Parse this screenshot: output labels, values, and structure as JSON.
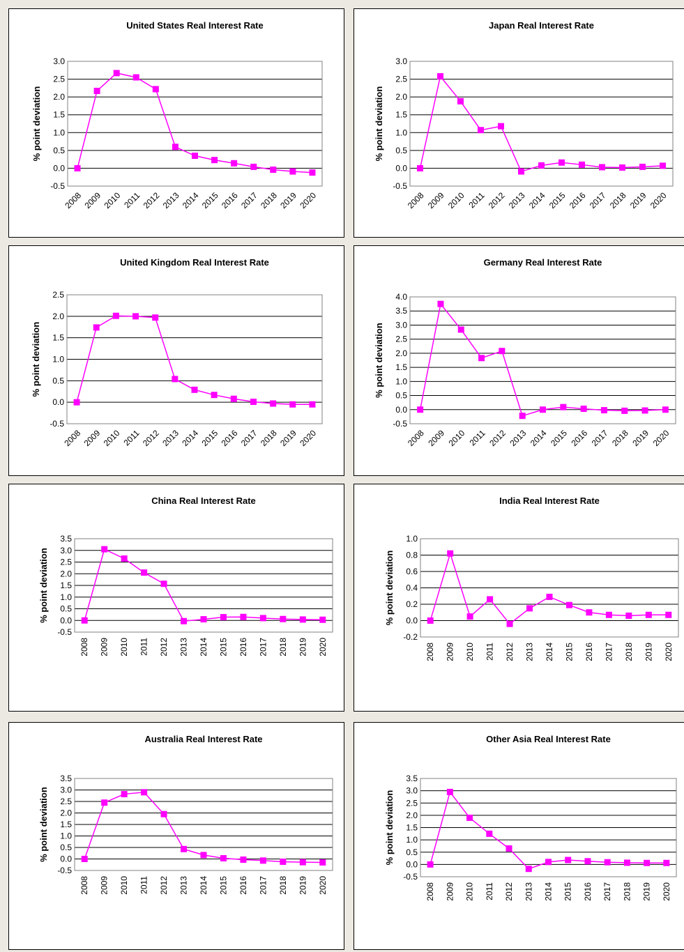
{
  "chart_data": [
    {
      "type": "line",
      "title": "United States Real Interest Rate",
      "y_label": "% point deviation",
      "color": "#ff00ff",
      "categories": [
        "2008",
        "2009",
        "2010",
        "2011",
        "2012",
        "2013",
        "2014",
        "2015",
        "2016",
        "2017",
        "2018",
        "2019",
        "2020"
      ],
      "values": [
        0,
        2.17,
        2.67,
        2.55,
        2.22,
        0.6,
        0.35,
        0.23,
        0.14,
        0.04,
        -0.04,
        -0.09,
        -0.12
      ],
      "ylim": [
        -0.5,
        3.0
      ],
      "yticks": [
        -0.5,
        {
          "value": 0,
          "label": "0.0"
        },
        0.5,
        {
          "value": 1,
          "label": "1.0"
        },
        1.5,
        {
          "value": 2,
          "label": "2.0"
        },
        2.5,
        {
          "value": 3,
          "label": "3.0"
        }
      ],
      "grid": true
    },
    {
      "type": "line",
      "title": "Japan Real Interest Rate",
      "y_label": "% point deviation",
      "color": "#ff00ff",
      "categories": [
        "2008",
        "2009",
        "2010",
        "2011",
        "2012",
        "2013",
        "2014",
        "2015",
        "2016",
        "2017",
        "2018",
        "2019",
        "2020"
      ],
      "values": [
        0,
        2.58,
        1.88,
        1.07,
        1.18,
        -0.09,
        0.08,
        0.16,
        0.1,
        0.03,
        0.02,
        0.04,
        0.07
      ],
      "ylim": [
        -0.5,
        3.0
      ],
      "yticks": [
        -0.5,
        {
          "value": 0,
          "label": "0.0"
        },
        0.5,
        {
          "value": 1,
          "label": "1.0"
        },
        1.5,
        {
          "value": 2,
          "label": "2.0"
        },
        2.5,
        {
          "value": 3,
          "label": "3.0"
        }
      ],
      "grid": true
    },
    {
      "type": "line",
      "title": "United Kingdom Real Interest Rate",
      "y_label": "% point deviation",
      "color": "#ff00ff",
      "categories": [
        "2008",
        "2009",
        "2010",
        "2011",
        "2012",
        "2013",
        "2014",
        "2015",
        "2016",
        "2017",
        "2018",
        "2019",
        "2020"
      ],
      "values": [
        0,
        1.74,
        2.01,
        2.0,
        1.97,
        0.54,
        0.29,
        0.17,
        0.08,
        0.01,
        -0.03,
        -0.05,
        -0.05
      ],
      "ylim": [
        -0.5,
        2.5
      ],
      "yticks": [
        -0.5,
        {
          "value": 0,
          "label": "0.0"
        },
        0.5,
        {
          "value": 1,
          "label": "1.0"
        },
        1.5,
        {
          "value": 2,
          "label": "2.0"
        },
        2.5
      ],
      "grid": true
    },
    {
      "type": "line",
      "title": "Germany Real Interest Rate",
      "y_label": "% point deviation",
      "color": "#ff00ff",
      "categories": [
        "2008",
        "2009",
        "2010",
        "2011",
        "2012",
        "2013",
        "2014",
        "2015",
        "2016",
        "2017",
        "2018",
        "2019",
        "2020"
      ],
      "values": [
        0,
        3.75,
        2.84,
        1.83,
        2.08,
        -0.22,
        0.0,
        0.09,
        0.03,
        -0.02,
        -0.04,
        -0.03,
        0.0
      ],
      "ylim": [
        -0.5,
        4.0
      ],
      "yticks": [
        -0.5,
        {
          "value": 0,
          "label": "0.0"
        },
        0.5,
        {
          "value": 1,
          "label": "1.0"
        },
        1.5,
        {
          "value": 2,
          "label": "2.0"
        },
        2.5,
        {
          "value": 3,
          "label": "3.0"
        },
        3.5,
        {
          "value": 4,
          "label": "4.0"
        }
      ],
      "grid": true
    },
    {
      "type": "line",
      "title": "China Real Interest Rate",
      "y_label": "% point deviation",
      "color": "#ff00ff",
      "categories": [
        "2008",
        "2009",
        "2010",
        "2011",
        "2012",
        "2013",
        "2014",
        "2015",
        "2016",
        "2017",
        "2018",
        "2019",
        "2020"
      ],
      "values": [
        0,
        3.05,
        2.65,
        2.05,
        1.57,
        -0.03,
        0.05,
        0.14,
        0.15,
        0.1,
        0.06,
        0.04,
        0.03
      ],
      "ylim": [
        -0.5,
        3.5
      ],
      "yticks": [
        -0.5,
        {
          "value": 0,
          "label": "0.0"
        },
        0.5,
        {
          "value": 1,
          "label": "1.0"
        },
        1.5,
        {
          "value": 2,
          "label": "2.0"
        },
        2.5,
        {
          "value": 3,
          "label": "3.0"
        },
        3.5
      ],
      "grid": true
    },
    {
      "type": "line",
      "title": "India Real Interest Rate",
      "y_label": "% point deviation",
      "color": "#ff00ff",
      "categories": [
        "2008",
        "2009",
        "2010",
        "2011",
        "2012",
        "2013",
        "2014",
        "2015",
        "2016",
        "2017",
        "2018",
        "2019",
        "2020"
      ],
      "values": [
        0,
        0.82,
        0.05,
        0.26,
        -0.04,
        0.15,
        0.29,
        0.19,
        0.1,
        0.07,
        0.06,
        0.07,
        0.07
      ],
      "ylim": [
        -0.2,
        1.0
      ],
      "yticks": [
        -0.2,
        {
          "value": 0,
          "label": "0.0"
        },
        0.2,
        0.4,
        0.6,
        0.8,
        {
          "value": 1,
          "label": "1.0"
        }
      ],
      "grid": true
    },
    {
      "type": "line",
      "title": "Australia Real Interest Rate",
      "y_label": "% point deviation",
      "color": "#ff00ff",
      "categories": [
        "2008",
        "2009",
        "2010",
        "2011",
        "2012",
        "2013",
        "2014",
        "2015",
        "2016",
        "2017",
        "2018",
        "2019",
        "2020"
      ],
      "values": [
        0,
        2.45,
        2.82,
        2.9,
        1.95,
        0.43,
        0.17,
        0.03,
        -0.03,
        -0.07,
        -0.12,
        -0.14,
        -0.15
      ],
      "ylim": [
        -0.5,
        3.5
      ],
      "yticks": [
        -0.5,
        {
          "value": 0,
          "label": "0.0"
        },
        0.5,
        {
          "value": 1,
          "label": "1.0"
        },
        1.5,
        {
          "value": 2,
          "label": "2.0"
        },
        2.5,
        {
          "value": 3,
          "label": "3.0"
        },
        3.5
      ],
      "grid": true
    },
    {
      "type": "line",
      "title": "Other Asia Real Interest Rate",
      "y_label": "% point deviation",
      "color": "#ff00ff",
      "categories": [
        "2008",
        "2009",
        "2010",
        "2011",
        "2012",
        "2013",
        "2014",
        "2015",
        "2016",
        "2017",
        "2018",
        "2019",
        "2020"
      ],
      "values": [
        0,
        2.95,
        1.9,
        1.25,
        0.65,
        -0.18,
        0.1,
        0.18,
        0.13,
        0.09,
        0.07,
        0.06,
        0.06
      ],
      "ylim": [
        -0.5,
        3.5
      ],
      "yticks": [
        -0.5,
        {
          "value": 0,
          "label": "0.0"
        },
        0.5,
        {
          "value": 1,
          "label": "1.0"
        },
        1.5,
        {
          "value": 2,
          "label": "2.0"
        },
        2.5,
        {
          "value": 3,
          "label": "3.0"
        },
        3.5
      ],
      "grid": true
    }
  ]
}
